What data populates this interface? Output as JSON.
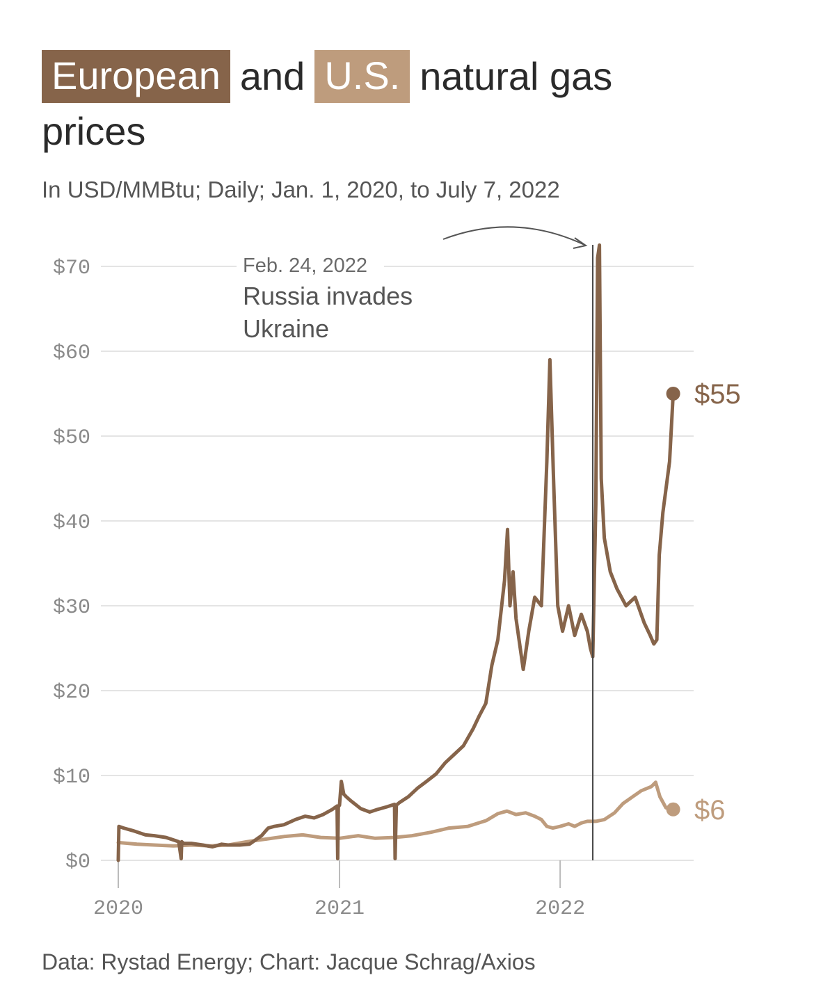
{
  "title": {
    "eu_label": "European",
    "and": "and",
    "us_label": "U.S.",
    "rest": "natural gas",
    "line2": "prices"
  },
  "subtitle": "In USD/MMBtu; Daily; Jan. 1, 2020, to July 7, 2022",
  "source": "Data: Rystad Energy; Chart: Jacque Schrag/Axios",
  "colors": {
    "european": "#86644a",
    "us": "#be9c7d",
    "grid": "#e4e4e4",
    "annotation": "#444444"
  },
  "chart_data": {
    "type": "line",
    "ylim": [
      0,
      70
    ],
    "y_ticks": [
      0,
      10,
      20,
      30,
      40,
      50,
      60,
      70
    ],
    "y_tick_labels": [
      "$0",
      "$10",
      "$20",
      "$30",
      "$40",
      "$50",
      "$60",
      "$70"
    ],
    "xlim": [
      "2020-01-01",
      "2022-07-07"
    ],
    "x_ticks": [
      "2020-01-01",
      "2021-01-01",
      "2022-01-01"
    ],
    "x_tick_labels": [
      "2020",
      "2021",
      "2022"
    ],
    "grid": true,
    "annotation": {
      "date": "2022-02-24",
      "date_label": "Feb. 24, 2022",
      "text_lines": [
        "Russia invades",
        "Ukraine"
      ]
    },
    "series": [
      {
        "name": "European",
        "end_label": "$55",
        "x": [
          "2020-01-01",
          "2020-01-02",
          "2020-01-10",
          "2020-01-25",
          "2020-02-15",
          "2020-03-01",
          "2020-03-20",
          "2020-04-10",
          "2020-04-14",
          "2020-04-15",
          "2020-04-18",
          "2020-05-01",
          "2020-05-20",
          "2020-06-05",
          "2020-06-20",
          "2020-07-01",
          "2020-07-20",
          "2020-08-05",
          "2020-08-25",
          "2020-09-05",
          "2020-09-15",
          "2020-10-01",
          "2020-10-20",
          "2020-11-05",
          "2020-11-20",
          "2020-12-05",
          "2020-12-20",
          "2020-12-28",
          "2020-12-29",
          "2020-12-30",
          "2021-01-01",
          "2021-01-04",
          "2021-01-08",
          "2021-01-12",
          "2021-01-20",
          "2021-02-05",
          "2021-02-20",
          "2021-03-05",
          "2021-03-20",
          "2021-04-02",
          "2021-04-03",
          "2021-04-05",
          "2021-04-10",
          "2021-04-25",
          "2021-05-10",
          "2021-05-25",
          "2021-06-10",
          "2021-06-25",
          "2021-07-10",
          "2021-07-25",
          "2021-08-10",
          "2021-08-20",
          "2021-08-31",
          "2021-09-10",
          "2021-09-20",
          "2021-10-01",
          "2021-10-06",
          "2021-10-10",
          "2021-10-15",
          "2021-10-20",
          "2021-11-01",
          "2021-11-10",
          "2021-11-20",
          "2021-12-01",
          "2021-12-10",
          "2021-12-15",
          "2021-12-21",
          "2021-12-28",
          "2022-01-05",
          "2022-01-15",
          "2022-01-25",
          "2022-02-05",
          "2022-02-15",
          "2022-02-20",
          "2022-02-24",
          "2022-03-01",
          "2022-03-04",
          "2022-03-07",
          "2022-03-10",
          "2022-03-15",
          "2022-03-25",
          "2022-04-05",
          "2022-04-20",
          "2022-05-05",
          "2022-05-20",
          "2022-05-30",
          "2022-06-05",
          "2022-06-10",
          "2022-06-14",
          "2022-06-20",
          "2022-07-01",
          "2022-07-07"
        ],
        "values": [
          0,
          4,
          3.8,
          3.5,
          3.0,
          2.9,
          2.7,
          2.2,
          0.2,
          2.2,
          2.0,
          2.0,
          1.8,
          1.6,
          1.9,
          1.8,
          1.8,
          1.9,
          2.9,
          3.8,
          4.0,
          4.2,
          4.8,
          5.2,
          5.0,
          5.4,
          6.0,
          6.4,
          0.2,
          6.3,
          6.5,
          9.3,
          7.8,
          7.5,
          7.0,
          6.1,
          5.7,
          6.0,
          6.3,
          6.6,
          0.2,
          6.5,
          6.8,
          7.5,
          8.5,
          9.3,
          10.2,
          11.5,
          12.5,
          13.5,
          15.5,
          17.0,
          18.5,
          23.0,
          26.0,
          33.0,
          39.0,
          30.0,
          34.0,
          28.5,
          22.5,
          27.0,
          31.0,
          30.0,
          47.0,
          59.0,
          45.0,
          30.0,
          27.0,
          30.0,
          26.5,
          29.0,
          27.0,
          25.0,
          24.0,
          42.0,
          71.0,
          72.5,
          45.0,
          38.0,
          34.0,
          32.0,
          30.0,
          31.0,
          28.0,
          26.5,
          25.5,
          26.0,
          36.0,
          41.0,
          47.0,
          55.0
        ]
      },
      {
        "name": "U.S.",
        "end_label": "$6",
        "x": [
          "2020-01-01",
          "2020-02-01",
          "2020-03-01",
          "2020-04-01",
          "2020-05-01",
          "2020-06-01",
          "2020-07-01",
          "2020-08-01",
          "2020-09-01",
          "2020-10-01",
          "2020-11-01",
          "2020-12-01",
          "2021-01-01",
          "2021-02-01",
          "2021-03-01",
          "2021-04-01",
          "2021-05-01",
          "2021-06-01",
          "2021-07-01",
          "2021-08-01",
          "2021-09-01",
          "2021-09-20",
          "2021-10-05",
          "2021-10-20",
          "2021-11-05",
          "2021-11-20",
          "2021-12-01",
          "2021-12-10",
          "2021-12-20",
          "2022-01-01",
          "2022-01-15",
          "2022-01-25",
          "2022-02-05",
          "2022-02-15",
          "2022-03-01",
          "2022-03-15",
          "2022-04-01",
          "2022-04-15",
          "2022-05-01",
          "2022-05-15",
          "2022-06-01",
          "2022-06-08",
          "2022-06-15",
          "2022-06-25",
          "2022-07-07"
        ],
        "values": [
          2.1,
          1.9,
          1.8,
          1.7,
          1.8,
          1.7,
          1.8,
          2.2,
          2.5,
          2.8,
          3.0,
          2.7,
          2.6,
          2.9,
          2.6,
          2.7,
          2.9,
          3.3,
          3.8,
          4.0,
          4.7,
          5.5,
          5.8,
          5.4,
          5.6,
          5.2,
          4.8,
          4.0,
          3.8,
          4.0,
          4.3,
          4.0,
          4.4,
          4.6,
          4.6,
          4.8,
          5.6,
          6.7,
          7.5,
          8.2,
          8.7,
          9.2,
          7.5,
          6.2,
          6.0
        ]
      }
    ]
  }
}
